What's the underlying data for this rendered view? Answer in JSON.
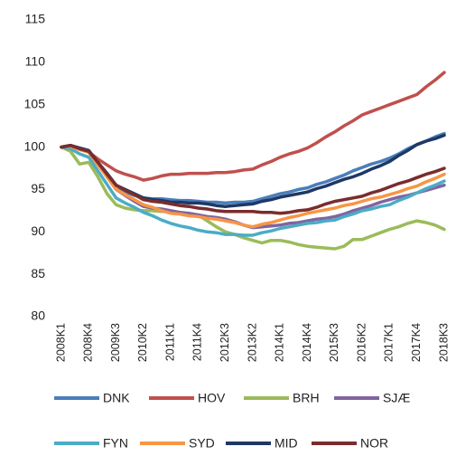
{
  "chart_data": {
    "type": "line",
    "categories": [
      "2008K1",
      null,
      null,
      "2008K4",
      null,
      null,
      "2009K3",
      null,
      null,
      "2010K2",
      null,
      null,
      "2011K1",
      null,
      null,
      "2011K4",
      null,
      null,
      "2012K3",
      null,
      null,
      "2013K2",
      null,
      null,
      "2014K1",
      null,
      null,
      "2014K4",
      null,
      null,
      "2015K3",
      null,
      null,
      "2016K2",
      null,
      null,
      "2017K1",
      null,
      null,
      "2017K4",
      null,
      null,
      "2018K3"
    ],
    "ylim": [
      80,
      115
    ],
    "yticks": [
      80,
      85,
      90,
      95,
      100,
      105,
      110,
      115
    ],
    "grid": false,
    "series": [
      {
        "name": "DNK",
        "color": "#4a7ebb",
        "values": [
          100,
          100.2,
          99.8,
          99.5,
          98.0,
          96.5,
          95.0,
          94.7,
          94.3,
          94.0,
          93.9,
          93.9,
          93.8,
          93.7,
          93.7,
          93.6,
          93.5,
          93.5,
          93.4,
          93.5,
          93.5,
          93.6,
          93.9,
          94.2,
          94.5,
          94.7,
          95.0,
          95.2,
          95.6,
          95.9,
          96.3,
          96.7,
          97.2,
          97.6,
          98.0,
          98.3,
          98.7,
          99.2,
          99.8,
          100.3,
          100.7,
          101.2,
          101.6
        ]
      },
      {
        "name": "HOV",
        "color": "#c0504d",
        "values": [
          100,
          100.2,
          99.8,
          99.4,
          98.6,
          97.9,
          97.2,
          96.8,
          96.5,
          96.1,
          96.3,
          96.6,
          96.8,
          96.8,
          96.9,
          96.9,
          96.9,
          97.0,
          97.0,
          97.1,
          97.3,
          97.4,
          97.9,
          98.3,
          98.8,
          99.2,
          99.5,
          99.9,
          100.5,
          101.2,
          101.8,
          102.5,
          103.1,
          103.8,
          104.2,
          104.6,
          105.0,
          105.4,
          105.8,
          106.2,
          107.1,
          107.9,
          108.8
        ]
      },
      {
        "name": "BRH",
        "color": "#9bbb59",
        "values": [
          100,
          99.5,
          98.0,
          98.2,
          96.5,
          94.5,
          93.2,
          92.8,
          92.6,
          92.5,
          92.5,
          92.4,
          92.4,
          92.3,
          92.1,
          92.0,
          91.3,
          90.6,
          90.0,
          89.7,
          89.3,
          89.0,
          88.7,
          89.0,
          89.0,
          88.8,
          88.5,
          88.3,
          88.2,
          88.1,
          88.0,
          88.3,
          89.1,
          89.1,
          89.5,
          89.9,
          90.3,
          90.6,
          91.0,
          91.3,
          91.1,
          90.8,
          90.3
        ]
      },
      {
        "name": "SJÆ",
        "color": "#8064a2",
        "values": [
          100,
          100.1,
          99.8,
          99.5,
          98.0,
          96.5,
          95.0,
          94.3,
          93.6,
          93.0,
          92.8,
          92.7,
          92.5,
          92.3,
          92.2,
          92.0,
          91.8,
          91.7,
          91.5,
          91.2,
          90.8,
          90.5,
          90.6,
          90.7,
          90.8,
          91.0,
          91.1,
          91.3,
          91.5,
          91.6,
          91.8,
          92.1,
          92.5,
          92.8,
          93.1,
          93.5,
          93.8,
          94.1,
          94.3,
          94.6,
          94.9,
          95.2,
          95.5
        ]
      },
      {
        "name": "FYN",
        "color": "#4bacc6",
        "values": [
          100,
          99.8,
          99.2,
          98.8,
          97.2,
          95.6,
          94.0,
          93.4,
          92.9,
          92.3,
          91.9,
          91.4,
          91.0,
          90.7,
          90.5,
          90.2,
          90.0,
          89.9,
          89.7,
          89.7,
          89.6,
          89.6,
          89.9,
          90.1,
          90.4,
          90.6,
          90.8,
          91.0,
          91.1,
          91.3,
          91.4,
          91.8,
          92.1,
          92.5,
          92.7,
          93.0,
          93.2,
          93.7,
          94.1,
          94.6,
          95.1,
          95.5,
          96.0
        ]
      },
      {
        "name": "SYD",
        "color": "#f79646",
        "values": [
          100,
          100.1,
          99.7,
          99.4,
          97.9,
          96.5,
          95.0,
          94.4,
          93.8,
          93.2,
          92.9,
          92.5,
          92.2,
          92.1,
          91.9,
          91.8,
          91.6,
          91.5,
          91.3,
          91.1,
          90.8,
          90.6,
          90.9,
          91.1,
          91.4,
          91.7,
          91.9,
          92.2,
          92.4,
          92.6,
          92.8,
          93.1,
          93.3,
          93.6,
          93.9,
          94.1,
          94.4,
          94.7,
          95.1,
          95.4,
          95.9,
          96.3,
          96.8
        ]
      },
      {
        "name": "MID",
        "color": "#1f3864",
        "values": [
          100,
          100.2,
          99.9,
          99.6,
          98.2,
          96.9,
          95.5,
          95.0,
          94.5,
          94.0,
          93.8,
          93.7,
          93.5,
          93.5,
          93.4,
          93.4,
          93.3,
          93.1,
          93.0,
          93.1,
          93.2,
          93.3,
          93.6,
          93.8,
          94.1,
          94.3,
          94.5,
          94.7,
          95.1,
          95.4,
          95.8,
          96.2,
          96.5,
          96.9,
          97.4,
          97.8,
          98.3,
          99.0,
          99.6,
          100.3,
          100.7,
          101.0,
          101.4
        ]
      },
      {
        "name": "NOR",
        "color": "#7b2c2c",
        "values": [
          100,
          100.2,
          99.8,
          99.5,
          98.2,
          96.8,
          95.5,
          94.9,
          94.4,
          93.8,
          93.6,
          93.5,
          93.3,
          93.1,
          93.0,
          92.8,
          92.7,
          92.5,
          92.4,
          92.4,
          92.4,
          92.4,
          92.3,
          92.3,
          92.2,
          92.3,
          92.5,
          92.6,
          92.9,
          93.3,
          93.6,
          93.8,
          94.0,
          94.2,
          94.6,
          94.9,
          95.3,
          95.7,
          96.0,
          96.4,
          96.8,
          97.1,
          97.5
        ]
      }
    ]
  }
}
